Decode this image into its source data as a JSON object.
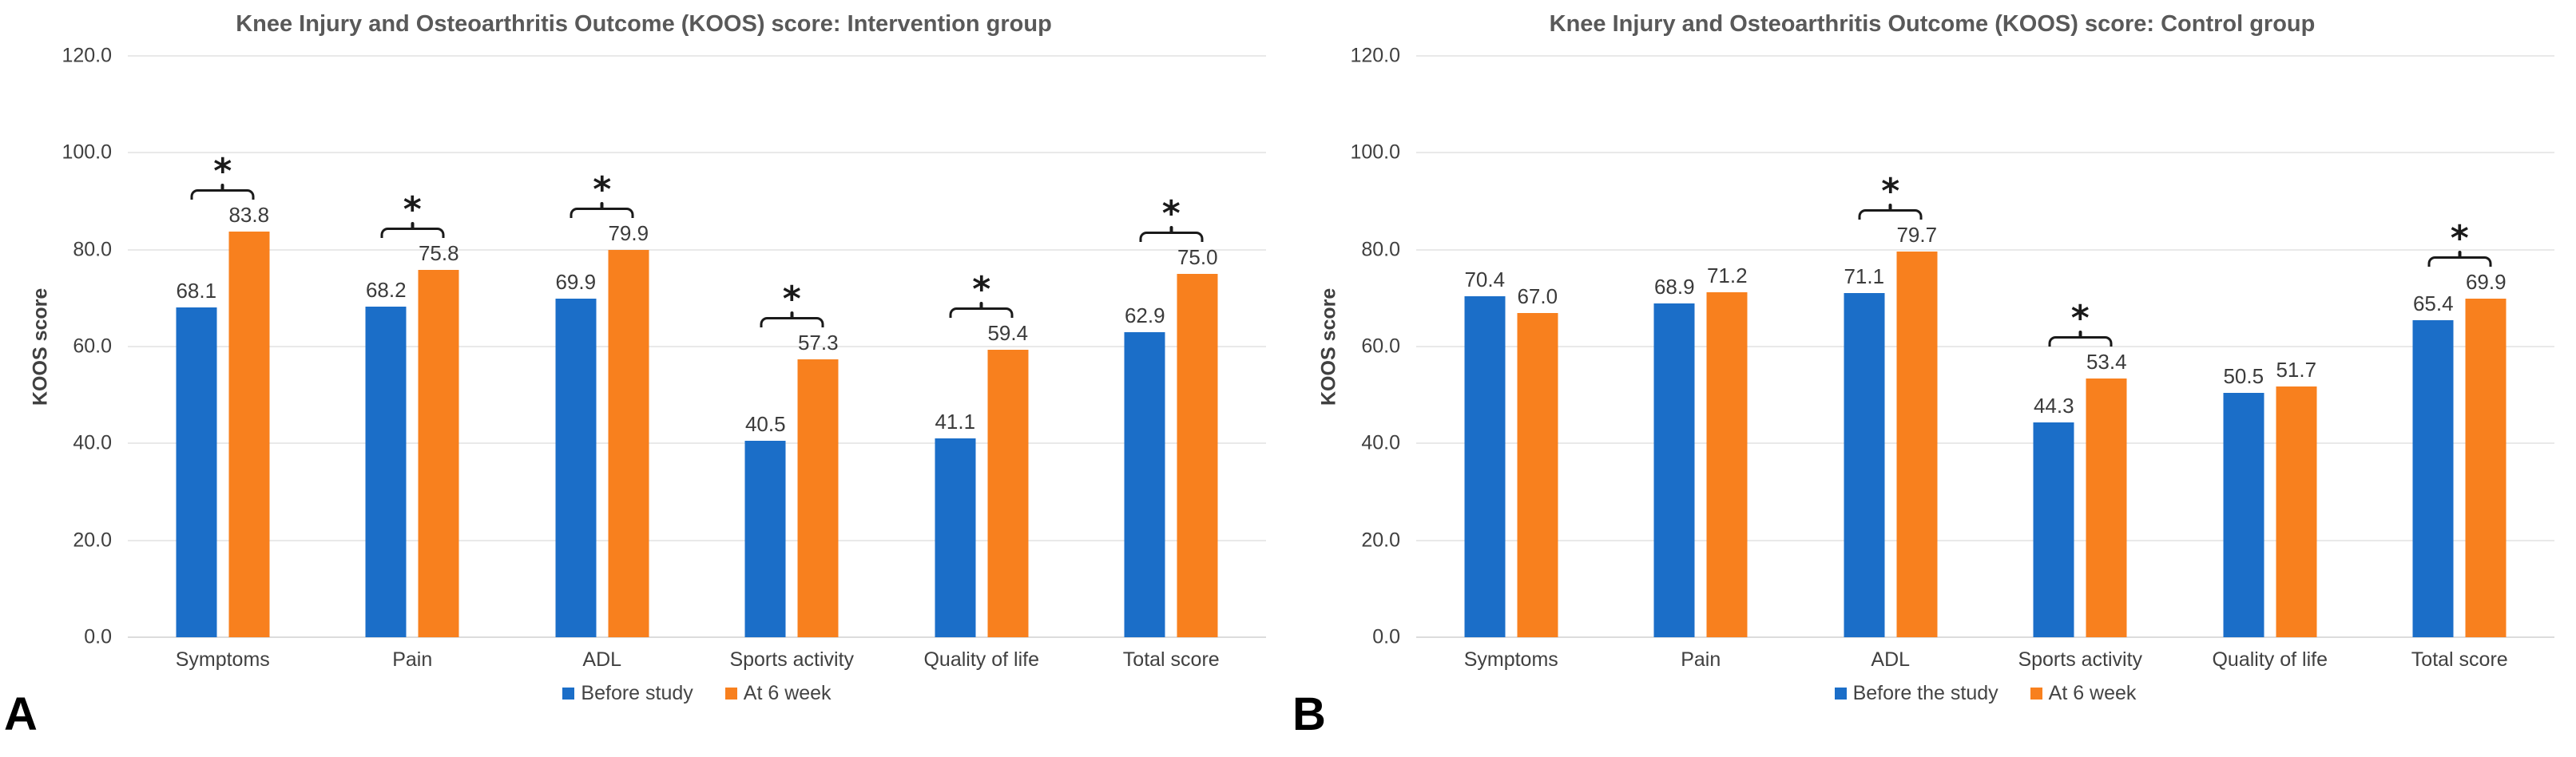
{
  "chart_data": [
    {
      "type": "bar",
      "panel_label": "A",
      "title": "Knee Injury and Osteoarthritis Outcome (KOOS) score: Intervention group",
      "xlabel": "",
      "ylabel": "KOOS score",
      "ylim": [
        0,
        120
      ],
      "ytick_step": 20,
      "grid": true,
      "legend_position": "bottom",
      "categories": [
        "Symptoms",
        "Pain",
        "ADL",
        "Sports activity",
        "Quality of life",
        "Total score"
      ],
      "series": [
        {
          "name": "Before study",
          "color": "#1b6ec8",
          "values": [
            68.1,
            68.2,
            69.9,
            40.5,
            41.1,
            62.9
          ]
        },
        {
          "name": "At 6 week",
          "color": "#f8801e",
          "values": [
            83.8,
            75.8,
            79.9,
            57.3,
            59.4,
            75.0
          ]
        }
      ],
      "significance_marker": "*",
      "significance_flags": [
        true,
        true,
        true,
        true,
        true,
        true
      ]
    },
    {
      "type": "bar",
      "panel_label": "B",
      "title": "Knee Injury and Osteoarthritis Outcome (KOOS) score: Control group",
      "xlabel": "",
      "ylabel": "KOOS score",
      "ylim": [
        0,
        120
      ],
      "ytick_step": 20,
      "grid": true,
      "legend_position": "bottom",
      "categories": [
        "Symptoms",
        "Pain",
        "ADL",
        "Sports activity",
        "Quality of life",
        "Total score"
      ],
      "series": [
        {
          "name": "Before the study",
          "color": "#1b6ec8",
          "values": [
            70.4,
            68.9,
            71.1,
            44.3,
            50.5,
            65.4
          ]
        },
        {
          "name": "At 6 week",
          "color": "#f8801e",
          "values": [
            67.0,
            71.2,
            79.7,
            53.4,
            51.7,
            69.9
          ]
        }
      ],
      "significance_marker": "*",
      "significance_flags": [
        false,
        false,
        true,
        true,
        false,
        true
      ]
    }
  ],
  "styles": {
    "series1_color": "#1b6ec8",
    "series2_color": "#f8801e",
    "grid_color": "#e9e9e9",
    "baseline_color": "#dcdcdc",
    "title_color": "#595959",
    "axis_text_color": "#404040",
    "annotation_color": "#1a1a1a"
  }
}
